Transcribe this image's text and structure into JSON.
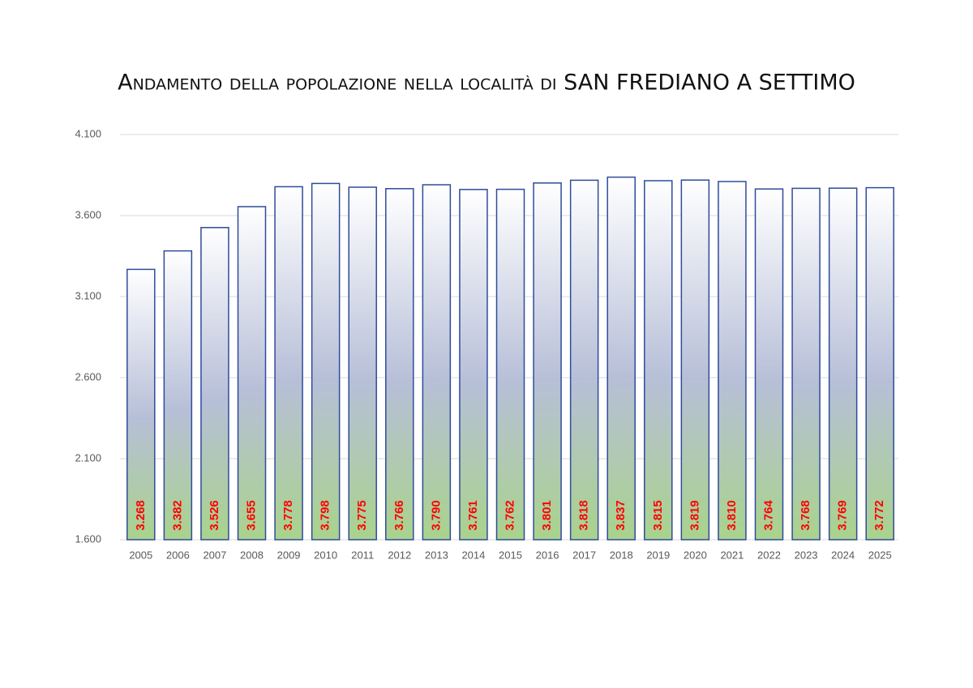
{
  "chart_data": {
    "type": "bar",
    "title": "Andamento della popolazione nella località di SAN FREDIANO A SETTIMO",
    "categories": [
      "2005",
      "2006",
      "2007",
      "2008",
      "2009",
      "2010",
      "2011",
      "2012",
      "2013",
      "2014",
      "2015",
      "2016",
      "2017",
      "2018",
      "2019",
      "2020",
      "2021",
      "2022",
      "2023",
      "2024",
      "2025"
    ],
    "values": [
      3268,
      3382,
      3526,
      3655,
      3778,
      3798,
      3775,
      3766,
      3790,
      3761,
      3762,
      3801,
      3818,
      3837,
      3815,
      3819,
      3810,
      3764,
      3768,
      3769,
      3772
    ],
    "value_labels": [
      "3.268",
      "3.382",
      "3.526",
      "3.655",
      "3.778",
      "3.798",
      "3.775",
      "3.766",
      "3.790",
      "3.761",
      "3.762",
      "3.801",
      "3.818",
      "3.837",
      "3.815",
      "3.819",
      "3.810",
      "3.764",
      "3.768",
      "3.769",
      "3.772"
    ],
    "color": "#2f4b9a",
    "ylim": [
      1600,
      4100
    ],
    "yticks": [
      {
        "value": 1600,
        "label": "1.600"
      },
      {
        "value": 2100,
        "label": "2.100"
      },
      {
        "value": 2600,
        "label": "2.600"
      },
      {
        "value": 3100,
        "label": "3.100"
      },
      {
        "value": 3600,
        "label": "3.600"
      },
      {
        "value": 4100,
        "label": "4.100"
      }
    ],
    "grid": true
  }
}
